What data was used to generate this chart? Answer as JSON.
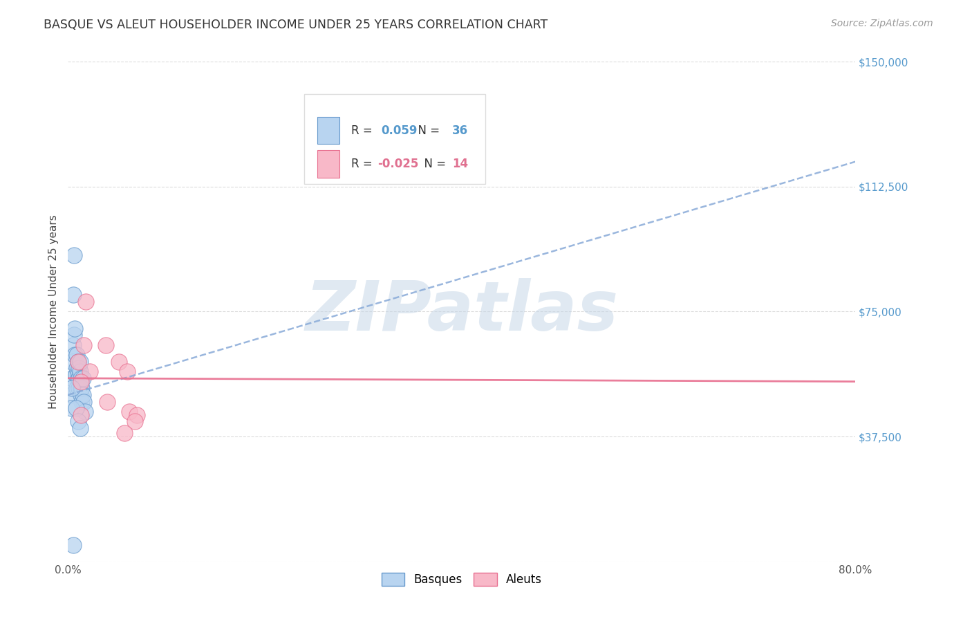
{
  "title": "BASQUE VS ALEUT HOUSEHOLDER INCOME UNDER 25 YEARS CORRELATION CHART",
  "source": "Source: ZipAtlas.com",
  "ylabel": "Householder Income Under 25 years",
  "xmin": 0.0,
  "xmax": 0.8,
  "ymin": 0,
  "ymax": 150000,
  "basque_R_str": "0.059",
  "basque_N_str": "36",
  "aleut_R_str": "-0.025",
  "aleut_N_str": "14",
  "basque_face": "#b8d4f0",
  "basque_edge": "#6699cc",
  "aleut_face": "#f8b8c8",
  "aleut_edge": "#e87090",
  "blue_trend_color": "#88aad8",
  "pink_trend_color": "#e87090",
  "grid_color": "#cccccc",
  "watermark_color": "#c8d8e8",
  "title_color": "#333333",
  "source_color": "#999999",
  "ytick_color": "#5599cc",
  "label_color_blue": "#5599cc",
  "label_color_pink": "#e07090",
  "basques_x": [
    0.005,
    0.003,
    0.004,
    0.004,
    0.005,
    0.006,
    0.007,
    0.007,
    0.008,
    0.009,
    0.009,
    0.009,
    0.01,
    0.01,
    0.01,
    0.011,
    0.011,
    0.011,
    0.012,
    0.012,
    0.013,
    0.013,
    0.013,
    0.014,
    0.014,
    0.015,
    0.015,
    0.016,
    0.017,
    0.003,
    0.004,
    0.005,
    0.006,
    0.008,
    0.01,
    0.012
  ],
  "basques_y": [
    5000,
    50000,
    55000,
    60000,
    65000,
    68000,
    62000,
    70000,
    56000,
    52000,
    58000,
    62000,
    55000,
    57000,
    60000,
    52000,
    55000,
    58000,
    57000,
    60000,
    50000,
    52000,
    55000,
    48000,
    52000,
    50000,
    55000,
    48000,
    45000,
    46000,
    52000,
    80000,
    92000,
    46000,
    42000,
    40000
  ],
  "aleuts_x": [
    0.01,
    0.016,
    0.022,
    0.04,
    0.038,
    0.052,
    0.06,
    0.062,
    0.07,
    0.013,
    0.013,
    0.018,
    0.068,
    0.057
  ],
  "aleuts_y": [
    60000,
    65000,
    57000,
    48000,
    65000,
    60000,
    57000,
    45000,
    44000,
    44000,
    54000,
    78000,
    42000,
    38500
  ],
  "basque_trend_x": [
    0.0,
    0.8
  ],
  "basque_trend_y": [
    50000,
    120000
  ],
  "aleut_trend_x": [
    0.0,
    0.8
  ],
  "aleut_trend_y": [
    55000,
    54000
  ],
  "dot_size": 280,
  "yticks": [
    0,
    37500,
    75000,
    112500,
    150000
  ],
  "ytick_labels": [
    "",
    "$37,500",
    "$75,000",
    "$112,500",
    "$150,000"
  ],
  "xtick_positions": [
    0.0,
    0.1,
    0.2,
    0.3,
    0.4,
    0.5,
    0.6,
    0.7,
    0.8
  ],
  "xtick_labels": [
    "0.0%",
    "",
    "",
    "",
    "",
    "",
    "",
    "",
    "80.0%"
  ]
}
